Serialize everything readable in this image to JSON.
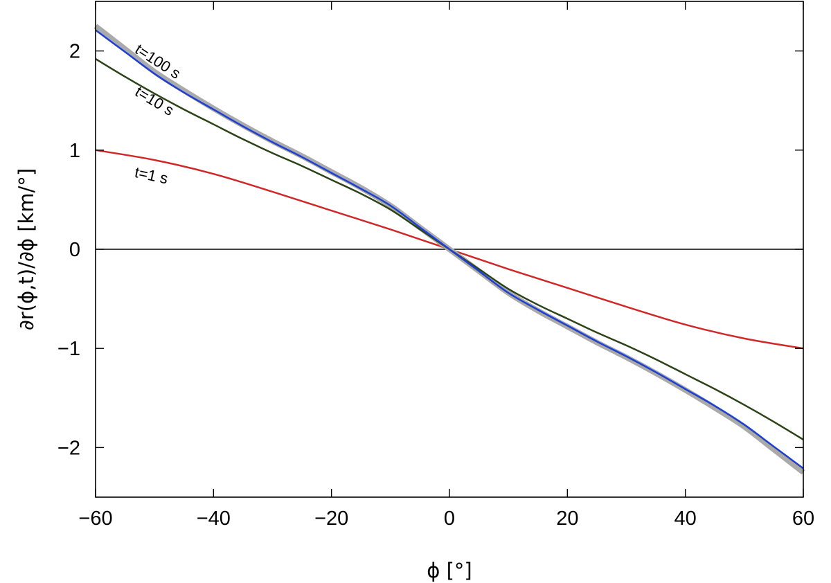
{
  "chart_data": {
    "type": "line",
    "title": "",
    "xlabel": "ϕ [°]",
    "ylabel": "∂r(ϕ,t)/∂ϕ [km/°]",
    "xlim": [
      -60,
      60
    ],
    "ylim": [
      -2.5,
      2.5
    ],
    "xticks": [
      -60,
      -40,
      -20,
      0,
      20,
      40,
      60
    ],
    "yticks": [
      -2,
      -1,
      0,
      1,
      2
    ],
    "xtick_labels": [
      "−60",
      "−40",
      "−20",
      "0",
      "20",
      "40",
      "60"
    ],
    "ytick_labels": [
      "−2",
      "−1",
      "0",
      "1",
      "2"
    ],
    "grid": false,
    "zero_line": true,
    "legend": "none",
    "series": [
      {
        "label": "t=1 s",
        "color": "#d02828",
        "width": 2.5,
        "x": [
          -60,
          -50,
          -40,
          -30,
          -20,
          -10,
          0,
          10,
          20,
          30,
          40,
          50,
          60
        ],
        "y": [
          1.0,
          0.9,
          0.76,
          0.58,
          0.39,
          0.2,
          0.0,
          -0.2,
          -0.39,
          -0.58,
          -0.76,
          -0.9,
          -1.0
        ]
      },
      {
        "label": "",
        "color": "#aaaaaa",
        "width": 8,
        "x": [
          -60,
          -55,
          -50,
          -45,
          -40,
          -35,
          -30,
          -25,
          -20,
          -15,
          -10,
          -5,
          0,
          5,
          10,
          15,
          20,
          25,
          30,
          35,
          40,
          45,
          50,
          55,
          60
        ],
        "y": [
          2.25,
          2.02,
          1.79,
          1.6,
          1.42,
          1.25,
          1.09,
          0.94,
          0.78,
          0.62,
          0.44,
          0.22,
          0.0,
          -0.22,
          -0.44,
          -0.62,
          -0.78,
          -0.94,
          -1.09,
          -1.25,
          -1.42,
          -1.6,
          -1.79,
          -2.02,
          -2.25
        ]
      },
      {
        "label": "t=10 s",
        "color": "#2b4317",
        "width": 2.5,
        "x": [
          -60,
          -55,
          -50,
          -45,
          -40,
          -35,
          -30,
          -25,
          -20,
          -15,
          -10,
          -5,
          0,
          5,
          10,
          15,
          20,
          25,
          30,
          35,
          40,
          45,
          50,
          55,
          60
        ],
        "y": [
          1.92,
          1.74,
          1.57,
          1.41,
          1.26,
          1.11,
          0.97,
          0.84,
          0.7,
          0.56,
          0.4,
          0.2,
          0.0,
          -0.2,
          -0.4,
          -0.56,
          -0.7,
          -0.84,
          -0.97,
          -1.11,
          -1.26,
          -1.41,
          -1.57,
          -1.74,
          -1.92
        ]
      },
      {
        "label": "t=100 s",
        "color": "#1e3fd0",
        "width": 2.5,
        "x": [
          -60,
          -55,
          -50,
          -45,
          -40,
          -35,
          -30,
          -25,
          -20,
          -15,
          -10,
          -5,
          0,
          5,
          10,
          15,
          20,
          25,
          30,
          35,
          40,
          45,
          50,
          55,
          60
        ],
        "y": [
          2.21,
          1.99,
          1.77,
          1.58,
          1.41,
          1.24,
          1.08,
          0.93,
          0.77,
          0.61,
          0.44,
          0.22,
          0.0,
          -0.22,
          -0.44,
          -0.61,
          -0.77,
          -0.93,
          -1.08,
          -1.24,
          -1.41,
          -1.58,
          -1.77,
          -1.99,
          -2.21
        ]
      }
    ],
    "annotations": [
      {
        "text": "t=100 s",
        "x": -53.5,
        "y": 1.99,
        "angle": 33
      },
      {
        "text": "t=10 s",
        "x": -53.5,
        "y": 1.56,
        "angle": 31
      },
      {
        "text": "t=1 s",
        "x": -53.5,
        "y": 0.73,
        "angle": 12
      }
    ]
  }
}
